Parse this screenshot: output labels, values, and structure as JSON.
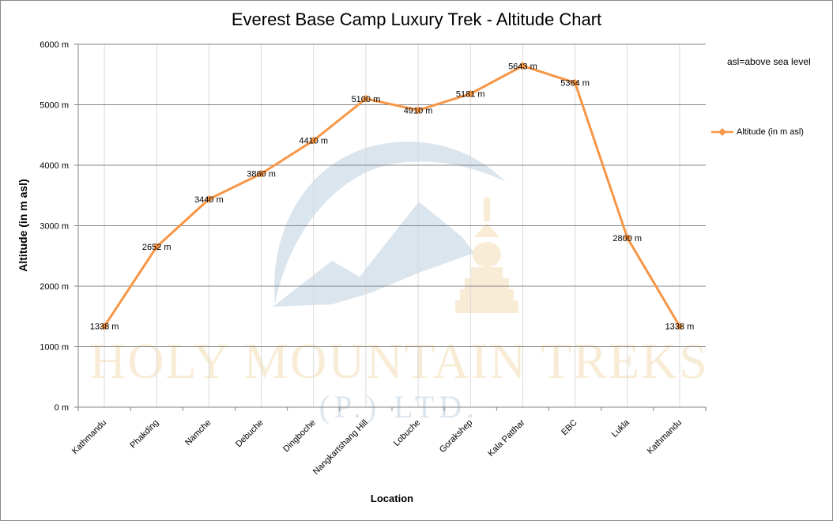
{
  "chart_data": {
    "type": "line",
    "title": "Everest Base Camp Luxury Trek - Altitude Chart",
    "xlabel": "Location",
    "ylabel": "Altitude (in m asl)",
    "note": "asl=above sea level",
    "categories": [
      "Kathmandu",
      "Phakding",
      "Namche",
      "Debuche",
      "Dingboche",
      "Nangkartshang Hill",
      "Lobuche",
      "Gorakshep",
      "Kala Patthar",
      "EBC",
      "Lukla",
      "Kathmandu"
    ],
    "series": [
      {
        "name": "Altitude (in  m asl)",
        "values": [
          1338,
          2652,
          3440,
          3860,
          4410,
          5100,
          4910,
          5181,
          5643,
          5364,
          2800,
          1338
        ],
        "data_labels": [
          "1338 m",
          "2652 m",
          "3440 m",
          "3860 m",
          "4410 m",
          "5100 m",
          "4910 m",
          "5181 m",
          "5643 m",
          "5364 m",
          "2800 m",
          "1338 m"
        ],
        "color": "#f79646"
      }
    ],
    "ylim": [
      0,
      6000
    ],
    "yticks": [
      0,
      1000,
      2000,
      3000,
      4000,
      5000,
      6000
    ],
    "ytick_labels": [
      "0 m",
      "1000 m",
      "2000 m",
      "3000 m",
      "4000 m",
      "5000 m",
      "6000 m"
    ],
    "grid": true,
    "legend_position": "right",
    "watermark": {
      "line1": "HOLY MOUNTAIN TREKS",
      "line2": "(P.) LTD."
    }
  },
  "colors": {
    "line": "#f79646",
    "grid": "#868686",
    "vgrid": "#d9d9d9",
    "watermark_blue": "#dbe5ee",
    "watermark_gold": "#f8ecd6"
  }
}
